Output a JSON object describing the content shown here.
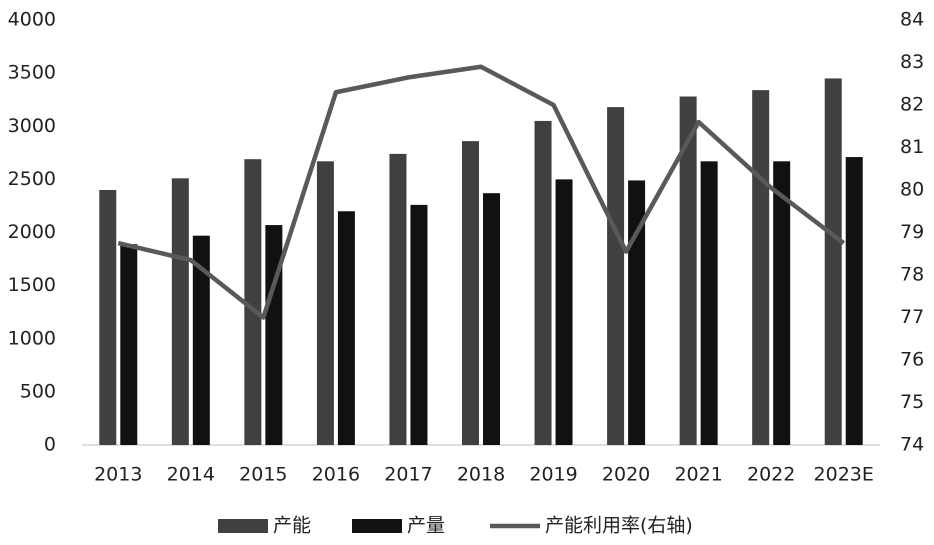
{
  "chart_data": {
    "type": "bar",
    "categories": [
      "2013",
      "2014",
      "2015",
      "2016",
      "2017",
      "2018",
      "2019",
      "2020",
      "2021",
      "2022",
      "2023E"
    ],
    "series": [
      {
        "name": "产能",
        "type": "bar",
        "color": "#404040",
        "values": [
          2400,
          2510,
          2690,
          2670,
          2740,
          2860,
          3050,
          3180,
          3280,
          3340,
          3450
        ]
      },
      {
        "name": "产量",
        "type": "bar",
        "color": "#111111",
        "values": [
          1890,
          1970,
          2070,
          2200,
          2260,
          2370,
          2500,
          2490,
          2670,
          2670,
          2710
        ]
      },
      {
        "name": "产能利用率(右轴)",
        "type": "line",
        "axis": "y2",
        "color": "#595959",
        "values": [
          78.75,
          78.35,
          77.0,
          82.3,
          82.65,
          82.9,
          82.0,
          78.55,
          81.6,
          80.05,
          78.75
        ]
      }
    ],
    "ylim": [
      0,
      4000
    ],
    "yticks": [
      0,
      500,
      1000,
      1500,
      2000,
      2500,
      3000,
      3500,
      4000
    ],
    "y2lim": [
      74,
      84
    ],
    "y2ticks": [
      74,
      75,
      76,
      77,
      78,
      79,
      80,
      81,
      82,
      83,
      84
    ],
    "grid": false,
    "legend": "bottom"
  }
}
